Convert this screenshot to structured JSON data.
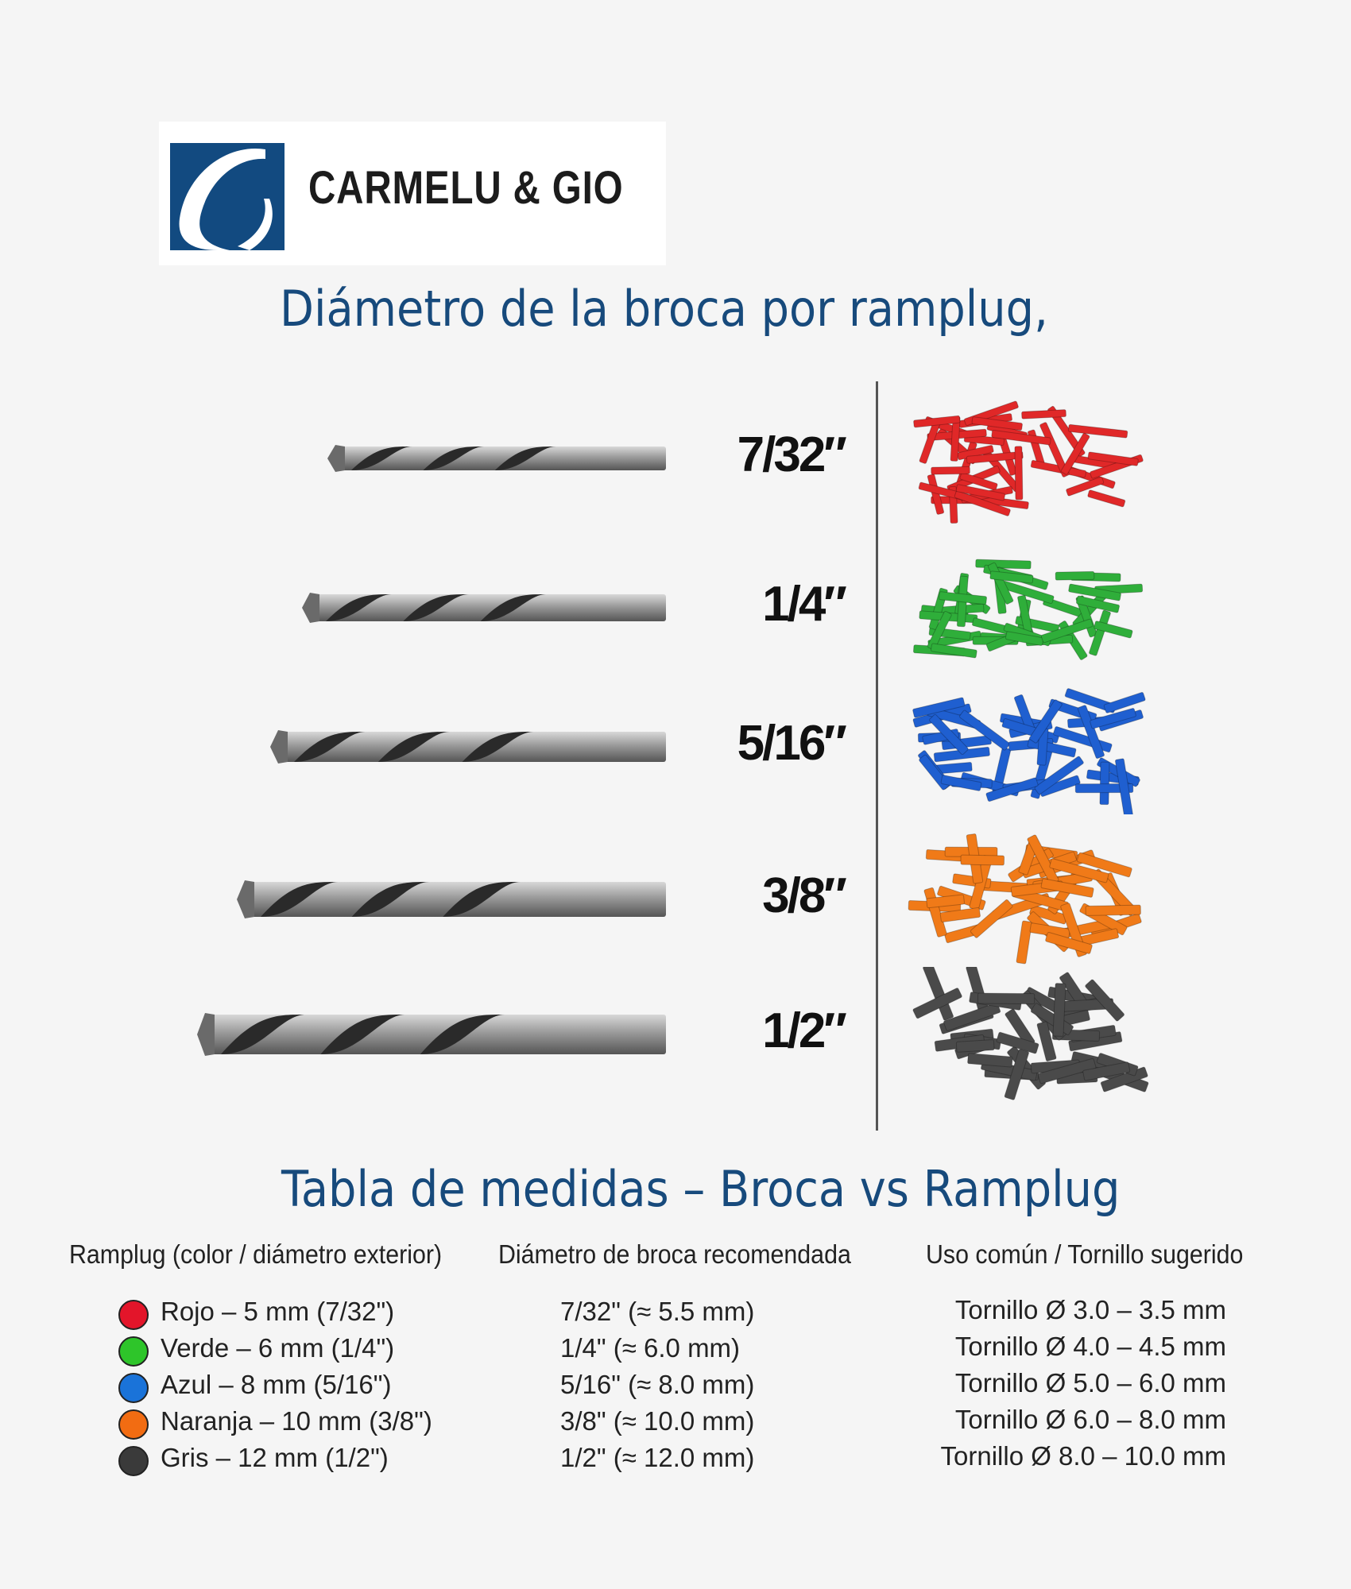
{
  "brand": {
    "name": "CARMELU & GIO",
    "color": "#124a80"
  },
  "main_title": "Diámetro de la broca por ramplug,",
  "sizes": [
    {
      "fraction": "7/32″",
      "plug_color": "#e02828"
    },
    {
      "fraction": "1/4″",
      "plug_color": "#2fae3a"
    },
    {
      "fraction": "5/16″",
      "plug_color": "#1f5fd0"
    },
    {
      "fraction": "3/8″",
      "plug_color": "#f07a18"
    },
    {
      "fraction": "1/2″",
      "plug_color": "#4a4a4a"
    }
  ],
  "table": {
    "title": "Tabla de medidas – Broca vs Ramplug",
    "headers": [
      "Ramplug (color / diámetro exterior)",
      "Diámetro de broca recomendada",
      "Uso común / Tornillo sugerido"
    ],
    "rows": [
      {
        "color": "#e3152a",
        "ramplug": "Rojo – 5 mm (7/32\")",
        "broca": "7/32\" (≈ 5.5 mm)",
        "tornillo": "Tornillo Ø 3.0 – 3.5 mm"
      },
      {
        "color": "#2ec52a",
        "ramplug": "Verde – 6 mm (1/4\")",
        "broca": "1/4\" (≈ 6.0 mm)",
        "tornillo": "Tornillo Ø 4.0 – 4.5 mm"
      },
      {
        "color": "#1a73d9",
        "ramplug": "Azul – 8 mm (5/16\")",
        "broca": "5/16\" (≈ 8.0 mm)",
        "tornillo": "Tornillo Ø 5.0 – 6.0 mm"
      },
      {
        "color": "#f26c12",
        "ramplug": "Naranja – 10 mm (3/8\")",
        "broca": "3/8\" (≈ 10.0 mm)",
        "tornillo": "Tornillo Ø 6.0 – 8.0 mm"
      },
      {
        "color": "#3a3a3a",
        "ramplug": "Gris – 12 mm (1/2\")",
        "broca": "1/2\" (≈ 12.0 mm)",
        "tornillo": "Tornillo Ø 8.0 – 10.0 mm"
      }
    ]
  }
}
